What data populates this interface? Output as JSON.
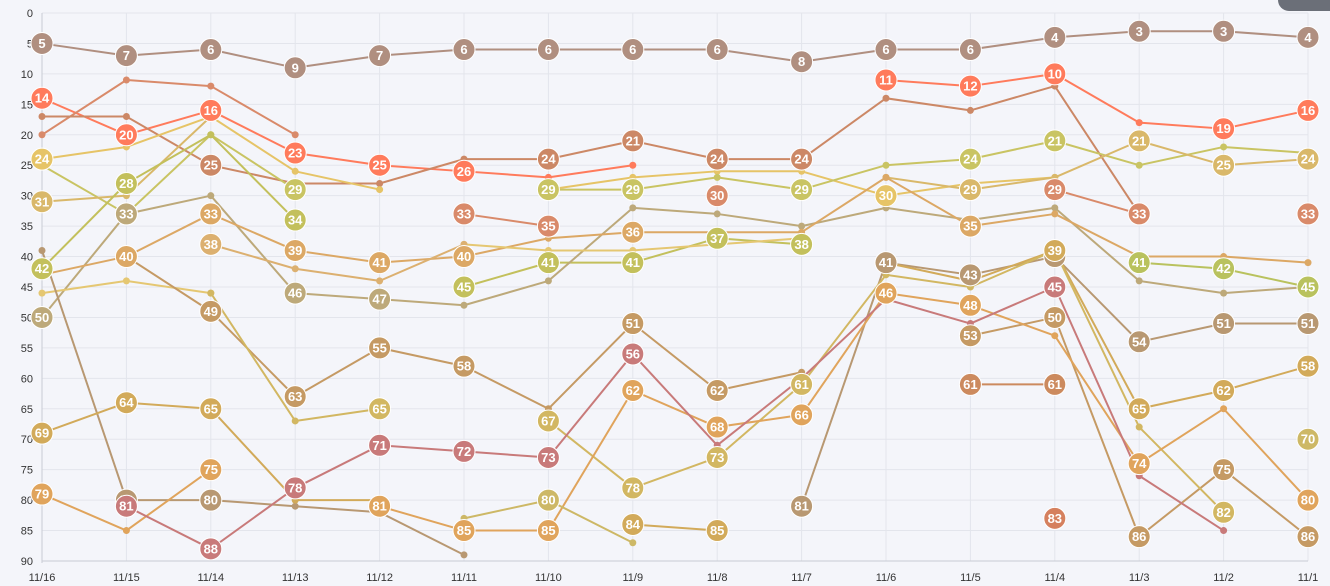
{
  "chart_data": {
    "type": "line",
    "categories": [
      "11/16",
      "11/15",
      "11/14",
      "11/13",
      "11/12",
      "11/11",
      "11/10",
      "11/9",
      "11/8",
      "11/7",
      "11/6",
      "11/5",
      "11/4",
      "11/3",
      "11/2",
      "11/1"
    ],
    "ylim": [
      0,
      90
    ],
    "y_reversed": true,
    "yticks": [
      0,
      5,
      10,
      15,
      20,
      25,
      30,
      35,
      40,
      45,
      50,
      55,
      60,
      65,
      70,
      75,
      80,
      85,
      90
    ],
    "grid": true,
    "legend": "none",
    "series": [
      {
        "color": "#b08f80",
        "values": [
          5,
          7,
          6,
          9,
          7,
          6,
          6,
          6,
          6,
          8,
          6,
          6,
          4,
          3,
          3,
          4
        ],
        "labels": [
          true,
          true,
          true,
          true,
          true,
          true,
          true,
          true,
          true,
          true,
          true,
          true,
          true,
          true,
          true,
          true
        ]
      },
      {
        "color": "#ff7b5c",
        "values": [
          14,
          20,
          16,
          23,
          25,
          26,
          27,
          25,
          null,
          null,
          11,
          12,
          10,
          18,
          19,
          16
        ],
        "labels": [
          true,
          true,
          true,
          true,
          true,
          true,
          false,
          false,
          false,
          false,
          true,
          true,
          true,
          false,
          true,
          true
        ]
      },
      {
        "color": "#d98a6a",
        "values": [
          20,
          11,
          12,
          20,
          null,
          33,
          35,
          null,
          30,
          null,
          null,
          null,
          29,
          33,
          null,
          33
        ],
        "labels": [
          false,
          false,
          false,
          false,
          false,
          true,
          true,
          false,
          true,
          false,
          false,
          false,
          true,
          true,
          false,
          true
        ]
      },
      {
        "color": "#cc8866",
        "values": [
          17,
          17,
          25,
          28,
          28,
          24,
          24,
          21,
          24,
          24,
          14,
          16,
          12,
          33,
          null,
          null
        ],
        "labels": [
          false,
          false,
          true,
          false,
          false,
          false,
          true,
          true,
          true,
          true,
          false,
          false,
          false,
          false,
          false,
          false
        ]
      },
      {
        "color": "#e6c467",
        "values": [
          24,
          22,
          17,
          26,
          29,
          null,
          29,
          27,
          26,
          26,
          30,
          28,
          27,
          null,
          null,
          null
        ],
        "labels": [
          true,
          false,
          false,
          false,
          false,
          false,
          false,
          false,
          false,
          false,
          true,
          false,
          false,
          false,
          false,
          false
        ]
      },
      {
        "color": "#c9c463",
        "values": [
          25,
          33,
          20,
          29,
          null,
          null,
          29,
          29,
          27,
          29,
          25,
          24,
          21,
          25,
          22,
          23
        ],
        "labels": [
          false,
          true,
          false,
          true,
          false,
          false,
          true,
          true,
          false,
          true,
          false,
          true,
          true,
          false,
          false,
          false
        ]
      },
      {
        "color": "#d9b86a",
        "values": [
          31,
          30,
          17,
          null,
          null,
          null,
          null,
          null,
          null,
          null,
          27,
          29,
          27,
          21,
          25,
          24
        ],
        "labels": [
          true,
          false,
          false,
          false,
          false,
          false,
          false,
          false,
          false,
          false,
          false,
          true,
          false,
          true,
          true,
          true
        ]
      },
      {
        "color": "#c3c05c",
        "values": [
          42,
          28,
          20,
          34,
          null,
          45,
          41,
          41,
          37,
          38,
          null,
          null,
          null,
          null,
          null,
          null
        ],
        "labels": [
          true,
          true,
          false,
          true,
          false,
          true,
          true,
          true,
          true,
          true,
          false,
          false,
          false,
          false,
          false,
          false
        ]
      },
      {
        "color": "#bda97a",
        "values": [
          50,
          33,
          30,
          46,
          47,
          48,
          44,
          32,
          33,
          35,
          32,
          34,
          32,
          44,
          46,
          45
        ],
        "labels": [
          true,
          true,
          false,
          true,
          true,
          false,
          false,
          false,
          false,
          false,
          false,
          false,
          false,
          false,
          false,
          false
        ]
      },
      {
        "color": "#dca865",
        "values": [
          43,
          40,
          33,
          39,
          41,
          40,
          37,
          36,
          36,
          36,
          27,
          35,
          33,
          40,
          40,
          41
        ],
        "labels": [
          false,
          true,
          true,
          true,
          true,
          true,
          false,
          true,
          false,
          false,
          false,
          true,
          false,
          false,
          false,
          false
        ]
      },
      {
        "color": "#b9c25e",
        "values": [
          null,
          null,
          null,
          null,
          null,
          null,
          null,
          null,
          null,
          null,
          null,
          null,
          null,
          41,
          42,
          45
        ],
        "labels": [
          false,
          false,
          false,
          false,
          false,
          false,
          false,
          false,
          false,
          false,
          false,
          false,
          false,
          true,
          true,
          true
        ]
      },
      {
        "color": "#e5c772",
        "values": [
          46,
          44,
          46,
          null,
          null,
          38,
          39,
          39,
          38,
          37,
          null,
          null,
          null,
          null,
          null,
          null
        ],
        "labels": [
          false,
          false,
          false,
          false,
          false,
          false,
          false,
          false,
          false,
          false,
          false,
          false,
          false,
          false,
          false,
          false
        ]
      },
      {
        "color": "#dcb070",
        "values": [
          null,
          null,
          38,
          42,
          44,
          38,
          null,
          null,
          null,
          null,
          null,
          null,
          null,
          null,
          null,
          null
        ],
        "labels": [
          false,
          false,
          true,
          false,
          false,
          false,
          false,
          false,
          false,
          false,
          false,
          false,
          false,
          false,
          false,
          false
        ]
      },
      {
        "color": "#b89872",
        "values": [
          39,
          80,
          80,
          81,
          82,
          89,
          null,
          null,
          null,
          81,
          41,
          43,
          40,
          54,
          51,
          51
        ],
        "labels": [
          false,
          true,
          true,
          false,
          false,
          false,
          false,
          false,
          false,
          true,
          true,
          true,
          true,
          true,
          true,
          true
        ]
      },
      {
        "color": "#c59a64",
        "values": [
          null,
          40,
          49,
          63,
          55,
          58,
          65,
          51,
          62,
          59,
          null,
          53,
          50,
          86,
          75,
          86
        ],
        "labels": [
          false,
          false,
          true,
          true,
          true,
          true,
          false,
          true,
          true,
          false,
          false,
          true,
          true,
          true,
          true,
          true
        ]
      },
      {
        "color": "#d2aa5a",
        "values": [
          69,
          64,
          65,
          80,
          80,
          null,
          null,
          84,
          85,
          null,
          41,
          44,
          39,
          65,
          62,
          58
        ],
        "labels": [
          true,
          true,
          true,
          false,
          false,
          false,
          false,
          true,
          true,
          false,
          false,
          false,
          true,
          true,
          true,
          true
        ]
      },
      {
        "color": "#d2b762",
        "values": [
          null,
          null,
          46,
          67,
          65,
          null,
          67,
          78,
          73,
          61,
          43,
          45,
          39,
          68,
          82,
          null
        ],
        "labels": [
          false,
          false,
          false,
          false,
          true,
          false,
          true,
          true,
          true,
          true,
          false,
          false,
          false,
          false,
          true,
          false
        ]
      },
      {
        "color": "#e0a45c",
        "values": [
          79,
          85,
          75,
          null,
          81,
          85,
          85,
          62,
          68,
          66,
          46,
          48,
          53,
          74,
          65,
          80
        ],
        "labels": [
          true,
          false,
          true,
          false,
          true,
          true,
          true,
          true,
          true,
          true,
          true,
          true,
          false,
          true,
          false,
          true
        ]
      },
      {
        "color": "#c87a7a",
        "values": [
          null,
          81,
          88,
          78,
          71,
          72,
          73,
          56,
          71,
          60,
          47,
          51,
          45,
          76,
          85,
          null
        ],
        "labels": [
          false,
          true,
          true,
          true,
          true,
          true,
          true,
          true,
          false,
          false,
          false,
          false,
          true,
          false,
          false,
          false
        ]
      },
      {
        "color": "#cdb866",
        "values": [
          null,
          null,
          null,
          null,
          null,
          83,
          80,
          87,
          null,
          null,
          null,
          null,
          null,
          null,
          null,
          70
        ],
        "labels": [
          false,
          false,
          false,
          false,
          false,
          false,
          true,
          false,
          false,
          false,
          false,
          false,
          false,
          false,
          false,
          true
        ]
      },
      {
        "color": "#cc8a5e",
        "values": [
          null,
          null,
          null,
          null,
          null,
          null,
          null,
          null,
          null,
          null,
          null,
          61,
          61,
          null,
          null,
          null
        ],
        "labels": [
          false,
          false,
          false,
          false,
          false,
          false,
          false,
          false,
          false,
          false,
          false,
          true,
          true,
          false,
          false,
          false
        ]
      },
      {
        "color": "#d5805e",
        "values": [
          null,
          null,
          null,
          null,
          null,
          null,
          null,
          null,
          null,
          null,
          null,
          null,
          83,
          null,
          null,
          null
        ],
        "labels": [
          false,
          false,
          false,
          false,
          false,
          false,
          false,
          false,
          false,
          false,
          false,
          false,
          true,
          false,
          false,
          false
        ]
      }
    ]
  }
}
